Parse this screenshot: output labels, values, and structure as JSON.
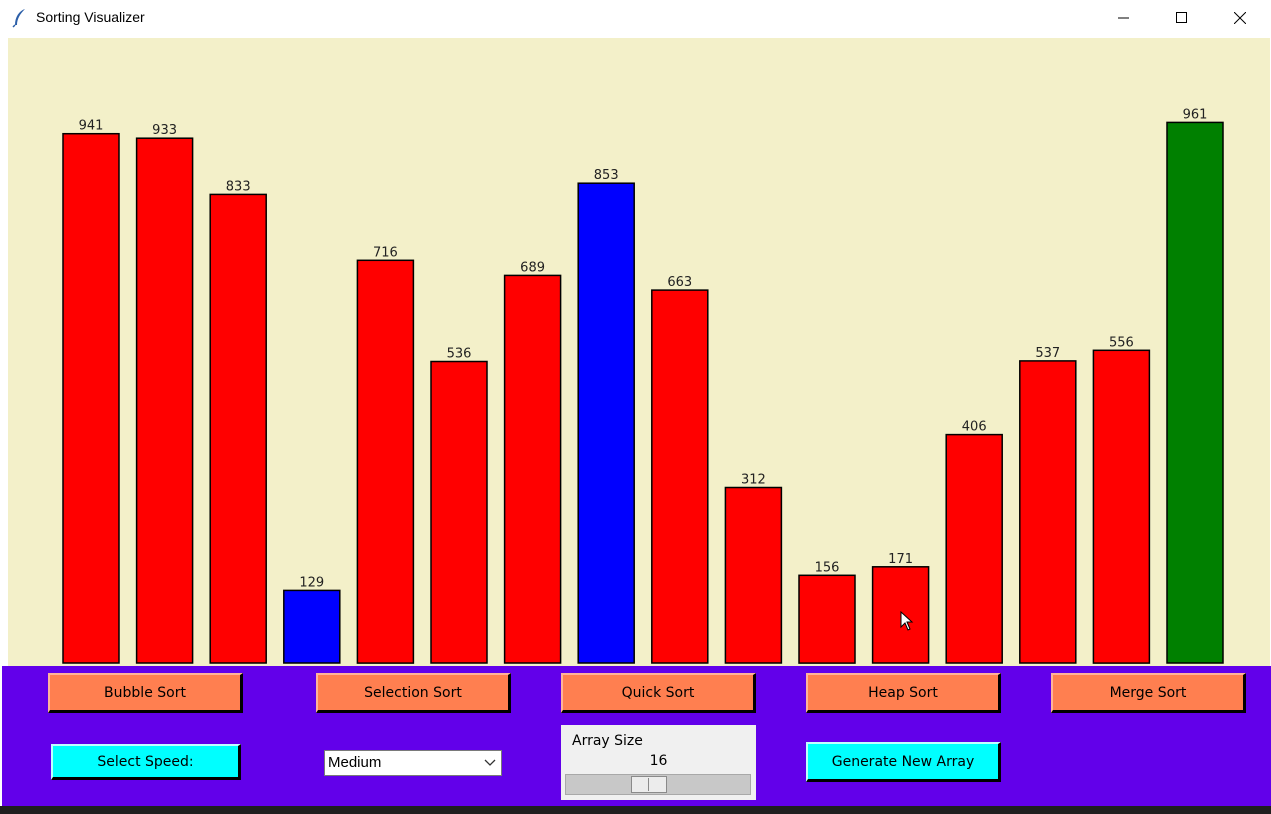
{
  "window": {
    "title": "Sorting Visualizer",
    "icon": "feather-icon",
    "controls": [
      "minimize-icon",
      "maximize-icon",
      "close-icon"
    ]
  },
  "colors": {
    "canvas_bg": "#f3f0c9",
    "panel_bg": "#6200ea",
    "bar_default": "#ff0000",
    "bar_compare": "#0000ff",
    "bar_sorted": "#008000",
    "algo_button": "#ff7f50",
    "action_button": "#00ffff"
  },
  "chart_data": {
    "type": "bar",
    "title": "",
    "xlabel": "",
    "ylabel": "",
    "ylim": [
      0,
      1000
    ],
    "values": [
      941,
      933,
      833,
      129,
      716,
      536,
      689,
      853,
      663,
      312,
      156,
      171,
      406,
      537,
      556,
      961
    ],
    "bar_colors": [
      "#ff0000",
      "#ff0000",
      "#ff0000",
      "#0000ff",
      "#ff0000",
      "#ff0000",
      "#ff0000",
      "#0000ff",
      "#ff0000",
      "#ff0000",
      "#ff0000",
      "#ff0000",
      "#ff0000",
      "#ff0000",
      "#ff0000",
      "#008000"
    ]
  },
  "buttons": {
    "bubble": "Bubble Sort",
    "selection": "Selection Sort",
    "quick": "Quick Sort",
    "heap": "Heap Sort",
    "merge": "Merge Sort",
    "select_speed": "Select Speed:",
    "generate": "Generate New Array"
  },
  "speed": {
    "selected": "Medium"
  },
  "array_size": {
    "label": "Array Size",
    "value": "16",
    "fraction": 0.44
  }
}
